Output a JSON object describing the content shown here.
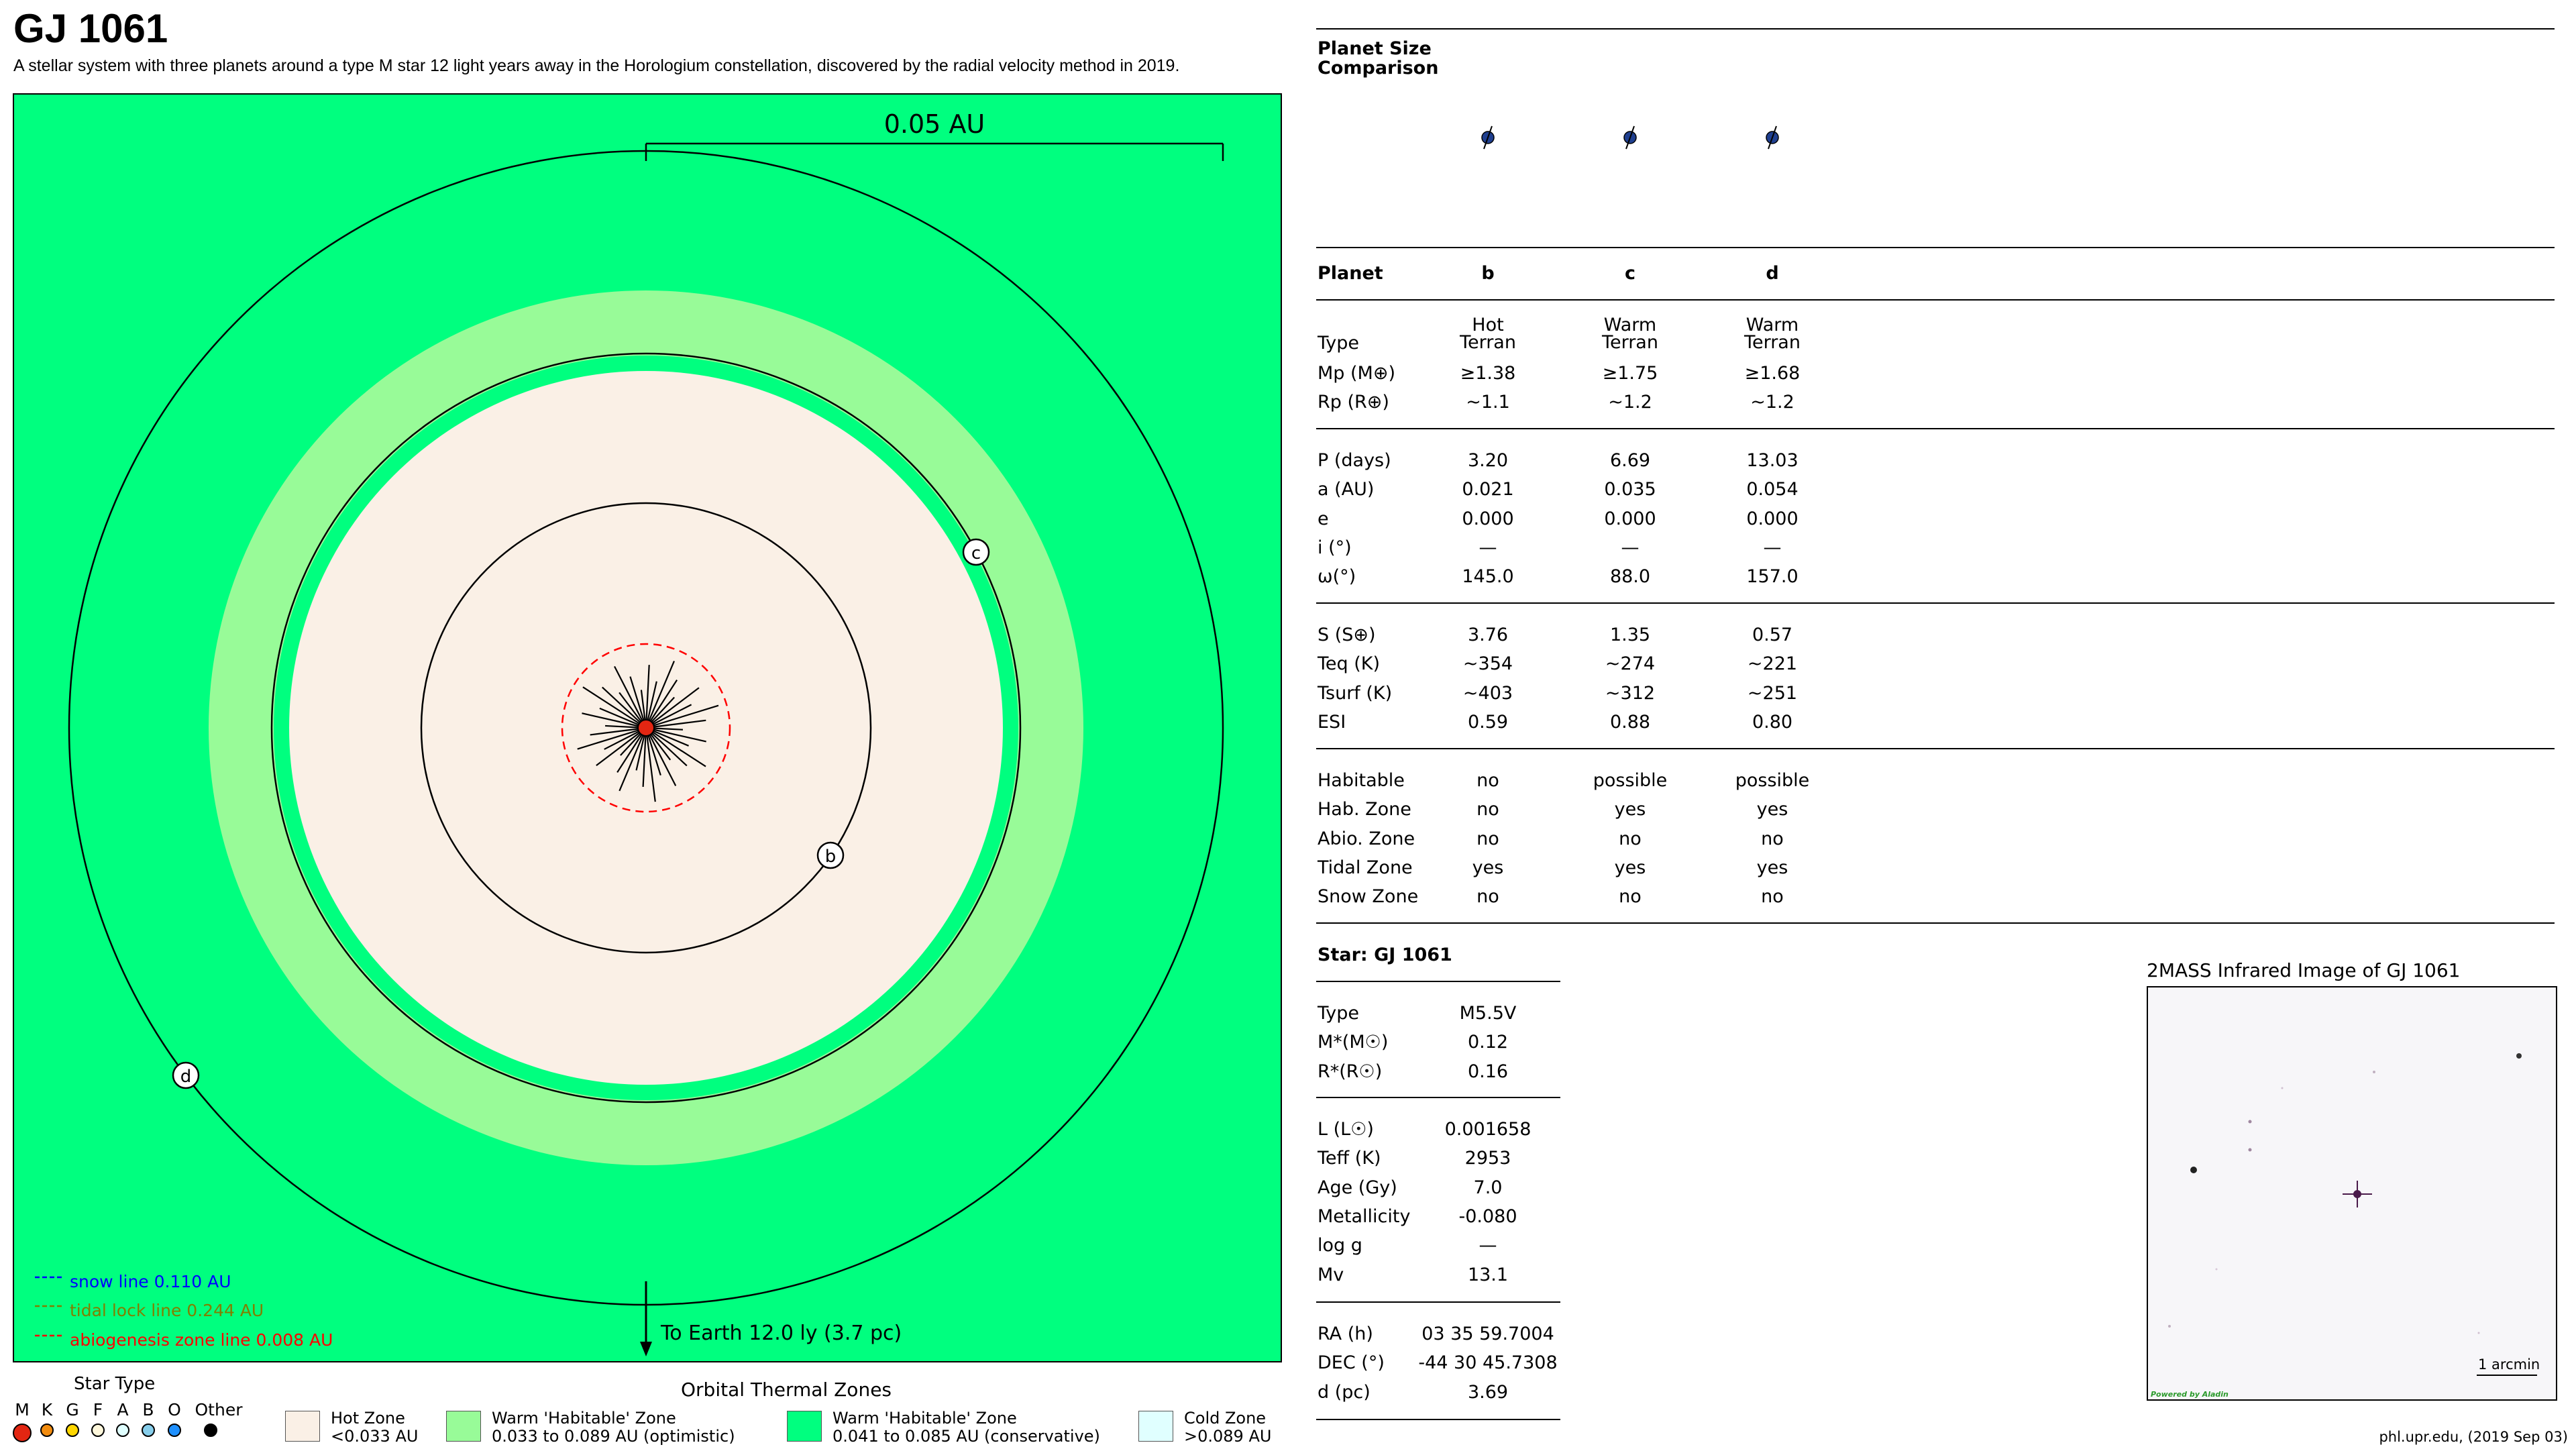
{
  "header": {
    "title": "GJ 1061",
    "subtitle": "A stellar system with three planets around a type M star 12 light years away in the Horologium constellation, discovered by the radial velocity method in 2019."
  },
  "diagram": {
    "scale_label": "0.05 AU",
    "earth_label": "To Earth 12.0 ly (3.7 pc)",
    "planets": [
      {
        "letter": "b"
      },
      {
        "letter": "c"
      },
      {
        "letter": "d"
      }
    ],
    "lines": {
      "snow": "snow line 0.110 AU",
      "tidal": "tidal lock line 0.244 AU",
      "abio": "abiogenesis zone line 0.008 AU"
    },
    "colors": {
      "cold_background": "#00ff7f",
      "warm_optimistic": "#98fb98",
      "hot_zone": "#faf0e6",
      "star": "#e32612",
      "snow_line": "#0000ff",
      "tidal_line": "#808000",
      "abio_line": "#ff0000",
      "planet_icon": "#1f3f8f"
    }
  },
  "legend": {
    "star_type_title": "Star Type",
    "star_types": [
      {
        "letter": "M",
        "color": "#e32612"
      },
      {
        "letter": "K",
        "color": "#f28c0f"
      },
      {
        "letter": "G",
        "color": "#ffd700"
      },
      {
        "letter": "F",
        "color": "#fff8dc"
      },
      {
        "letter": "A",
        "color": "#e0ffff"
      },
      {
        "letter": "B",
        "color": "#87ceeb"
      },
      {
        "letter": "O",
        "color": "#1e90ff"
      },
      {
        "letter": "Other",
        "color": "#000000"
      }
    ],
    "zones_title": "Orbital Thermal Zones",
    "zones": [
      {
        "name": "Hot Zone",
        "range": "<0.033 AU",
        "color": "#faf0e6"
      },
      {
        "name": "Warm 'Habitable' Zone",
        "range": "0.033 to 0.089 AU (optimistic)",
        "color": "#98fb98"
      },
      {
        "name": "Warm 'Habitable' Zone",
        "range": "0.041 to 0.085 AU (conservative)",
        "color": "#00ff7f"
      },
      {
        "name": "Cold Zone",
        "range": ">0.089 AU",
        "color": "#e0ffff"
      }
    ]
  },
  "size_comparison": {
    "title_line1": "Planet Size",
    "title_line2": "Comparison"
  },
  "planet_table": {
    "header": {
      "label": "Planet",
      "cols": [
        "b",
        "c",
        "d"
      ]
    },
    "type_label": "Type",
    "types": [
      [
        "Hot",
        "Terran"
      ],
      [
        "Warm",
        "Terran"
      ],
      [
        "Warm",
        "Terran"
      ]
    ],
    "group1": [
      {
        "label": "Mp (M⊕)",
        "values": [
          "≥1.38",
          "≥1.75",
          "≥1.68"
        ]
      },
      {
        "label": "Rp (R⊕)",
        "values": [
          "~1.1",
          "~1.2",
          "~1.2"
        ]
      }
    ],
    "group2": [
      {
        "label": "P (days)",
        "values": [
          "3.20",
          "6.69",
          "13.03"
        ]
      },
      {
        "label": "a (AU)",
        "values": [
          "0.021",
          "0.035",
          "0.054"
        ]
      },
      {
        "label": "e",
        "values": [
          "0.000",
          "0.000",
          "0.000"
        ]
      },
      {
        "label": "i (°)",
        "values": [
          "—",
          "—",
          "—"
        ]
      },
      {
        "label": "ω(°)",
        "values": [
          "145.0",
          "88.0",
          "157.0"
        ]
      }
    ],
    "group3": [
      {
        "label": "S (S⊕)",
        "values": [
          "3.76",
          "1.35",
          "0.57"
        ]
      },
      {
        "label": "Teq (K)",
        "values": [
          "~354",
          "~274",
          "~221"
        ]
      },
      {
        "label": "Tsurf (K)",
        "values": [
          "~403",
          "~312",
          "~251"
        ]
      },
      {
        "label": "ESI",
        "values": [
          "0.59",
          "0.88",
          "0.80"
        ]
      }
    ],
    "group4": [
      {
        "label": "Habitable",
        "values": [
          "no",
          "possible",
          "possible"
        ]
      },
      {
        "label": "Hab. Zone",
        "values": [
          "no",
          "yes",
          "yes"
        ]
      },
      {
        "label": "Abio. Zone",
        "values": [
          "no",
          "no",
          "no"
        ]
      },
      {
        "label": "Tidal Zone",
        "values": [
          "yes",
          "yes",
          "yes"
        ]
      },
      {
        "label": "Snow Zone",
        "values": [
          "no",
          "no",
          "no"
        ]
      }
    ]
  },
  "star_table": {
    "title": "Star: GJ 1061",
    "group1": [
      {
        "label": "Type",
        "value": "M5.5V"
      },
      {
        "label": "M*(M☉)",
        "value": "0.12"
      },
      {
        "label": "R*(R☉)",
        "value": "0.16"
      }
    ],
    "group2": [
      {
        "label": "L (L☉)",
        "value": "0.001658"
      },
      {
        "label": "Teff (K)",
        "value": "2953"
      },
      {
        "label": "Age (Gy)",
        "value": "7.0"
      },
      {
        "label": "Metallicity",
        "value": "-0.080"
      },
      {
        "label": "log g",
        "value": "—"
      },
      {
        "label": "Mv",
        "value": "13.1"
      }
    ],
    "group3": [
      {
        "label": "RA (h)",
        "value": "03 35 59.7004"
      },
      {
        "label": "DEC (°)",
        "value": "-44 30 45.7308"
      },
      {
        "label": "d (pc)",
        "value": "3.69"
      }
    ]
  },
  "infrared": {
    "title": "2MASS Infrared Image of GJ 1061",
    "scale": "1 arcmin",
    "credit": "Powered by Aladin"
  },
  "footer": "phl.upr.edu, (2019 Sep 03)"
}
